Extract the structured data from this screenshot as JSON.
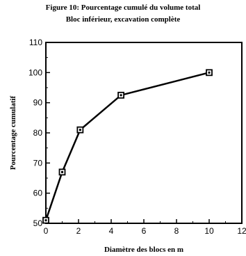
{
  "chart_data": {
    "type": "line",
    "title": "Figure 10:  Pourcentage cumulé du volume total",
    "subtitle": "Bloc inférieur, excavation complète",
    "xlabel": "Diamètre des blocs en m",
    "ylabel": "Pourcentage cumulatif",
    "xlim": [
      0,
      12
    ],
    "ylim": [
      50,
      110
    ],
    "xticks": [
      0,
      2,
      4,
      6,
      8,
      10,
      12
    ],
    "yticks": [
      50,
      60,
      70,
      80,
      90,
      100,
      110
    ],
    "grid": false,
    "series": [
      {
        "x": [
          0,
          1,
          2.1,
          4.6,
          10
        ],
        "y": [
          51,
          67,
          81,
          92.5,
          100
        ],
        "color": "#000000",
        "marker": "square"
      }
    ]
  }
}
